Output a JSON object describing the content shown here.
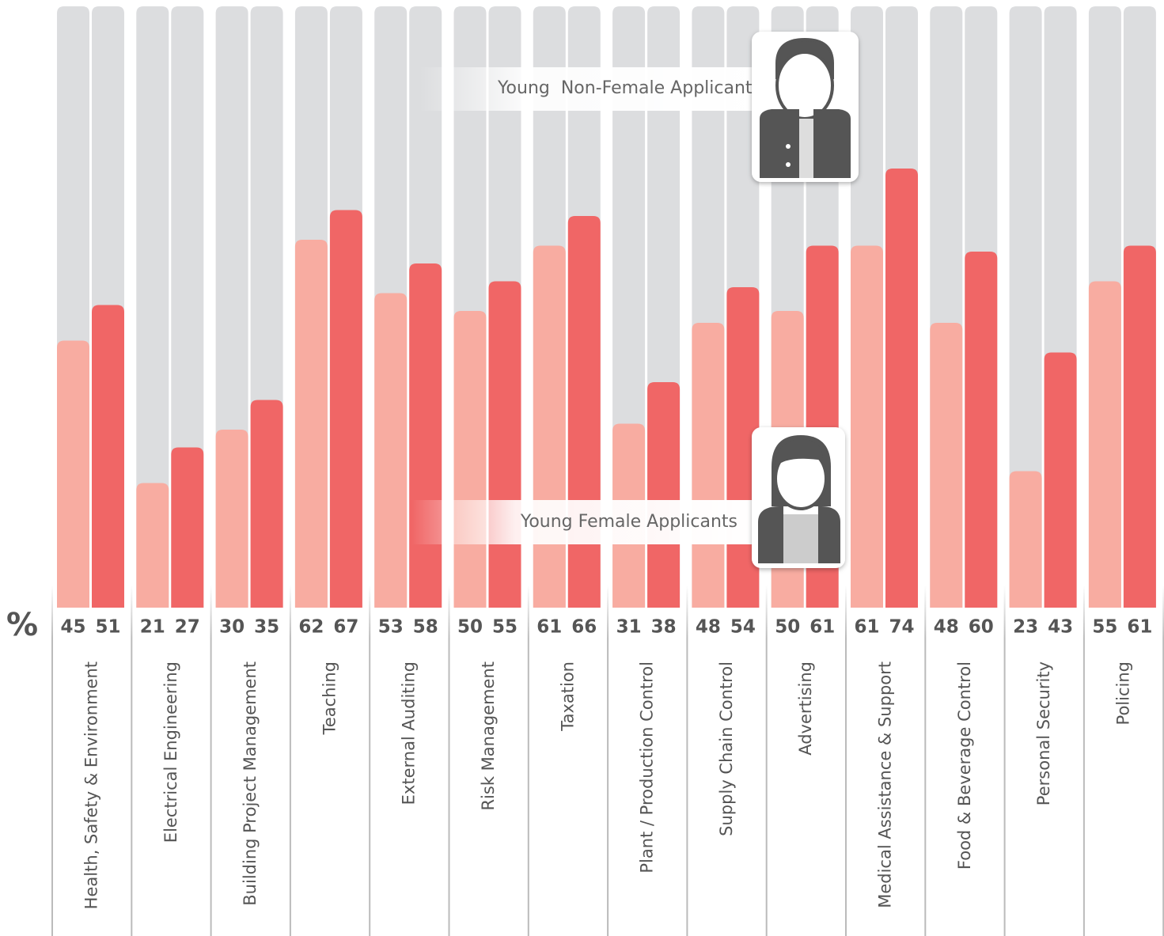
{
  "chart_data": {
    "type": "bar",
    "categories": [
      "Health, Safety & Environment",
      "Electrical Engineering",
      "Building Project Management",
      "Teaching",
      "External Auditing",
      "Risk Management",
      "Taxation",
      "Plant / Production Control",
      "Supply Chain Control",
      "Advertising",
      "Medical Assistance & Support",
      "Food & Beverage Control",
      "Personal Security",
      "Policing"
    ],
    "series": [
      {
        "name": "Young Female Applicants",
        "color": "#f8aca1",
        "values": [
          45,
          21,
          30,
          62,
          53,
          50,
          61,
          31,
          48,
          50,
          61,
          48,
          23,
          55
        ]
      },
      {
        "name": "Young  Non-Female Applicants",
        "color": "#f06666",
        "values": [
          51,
          27,
          35,
          67,
          58,
          55,
          66,
          38,
          54,
          61,
          74,
          60,
          43,
          61
        ]
      }
    ],
    "unit_label": "%",
    "ylim": [
      0,
      100
    ]
  }
}
